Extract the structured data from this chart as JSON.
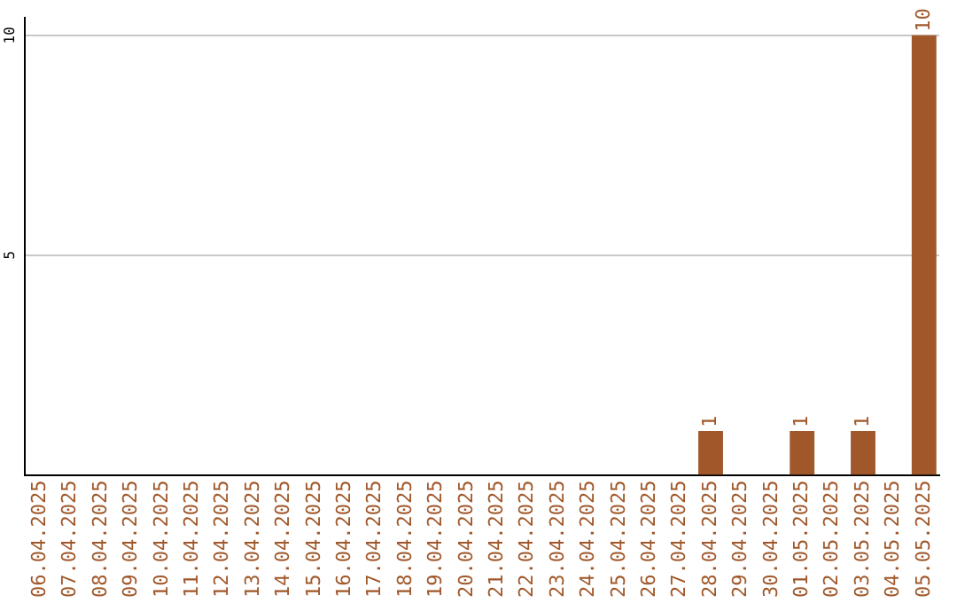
{
  "chart_data": {
    "type": "bar",
    "categories": [
      "06.04.2025",
      "07.04.2025",
      "08.04.2025",
      "09.04.2025",
      "10.04.2025",
      "11.04.2025",
      "12.04.2025",
      "13.04.2025",
      "14.04.2025",
      "15.04.2025",
      "16.04.2025",
      "17.04.2025",
      "18.04.2025",
      "19.04.2025",
      "20.04.2025",
      "21.04.2025",
      "22.04.2025",
      "23.04.2025",
      "24.04.2025",
      "25.04.2025",
      "26.04.2025",
      "27.04.2025",
      "28.04.2025",
      "29.04.2025",
      "30.04.2025",
      "01.05.2025",
      "02.05.2025",
      "03.05.2025",
      "04.05.2025",
      "05.05.2025"
    ],
    "values": [
      0,
      0,
      0,
      0,
      0,
      0,
      0,
      0,
      0,
      0,
      0,
      0,
      0,
      0,
      0,
      0,
      0,
      0,
      0,
      0,
      0,
      0,
      1,
      0,
      0,
      1,
      0,
      1,
      0,
      10
    ],
    "value_labels": [
      null,
      null,
      null,
      null,
      null,
      null,
      null,
      null,
      null,
      null,
      null,
      null,
      null,
      null,
      null,
      null,
      null,
      null,
      null,
      null,
      null,
      null,
      "1",
      null,
      null,
      "1",
      null,
      "1",
      null,
      "10"
    ],
    "color": "#a0582a",
    "ylim": [
      0,
      10.4
    ],
    "yticks": [
      5,
      10
    ],
    "grid": "y",
    "legend": false
  }
}
